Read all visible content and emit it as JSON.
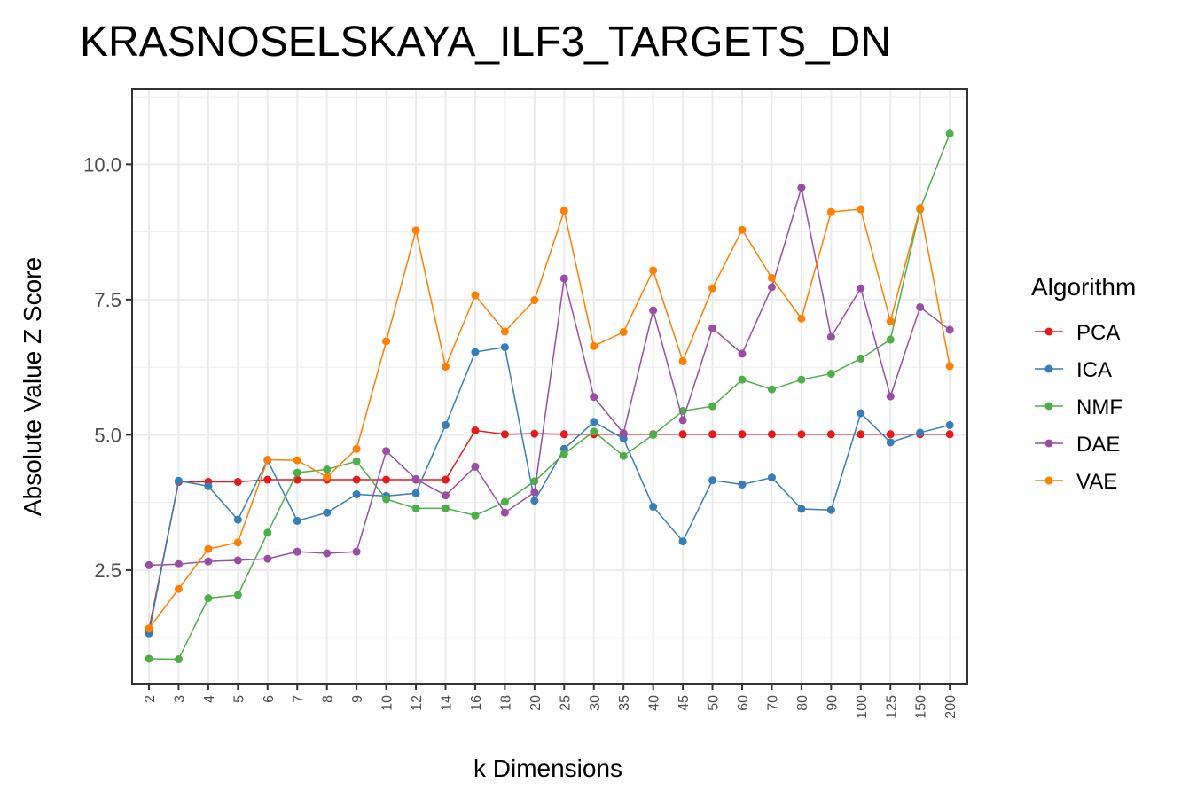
{
  "chart_data": {
    "type": "line",
    "title": "KRASNOSELSKAYA_ILF3_TARGETS_DN",
    "xlabel": "k Dimensions",
    "ylabel": "Absolute Value Z Score",
    "categories": [
      "2",
      "3",
      "4",
      "5",
      "6",
      "7",
      "8",
      "9",
      "10",
      "12",
      "14",
      "16",
      "18",
      "20",
      "25",
      "30",
      "35",
      "40",
      "45",
      "50",
      "60",
      "70",
      "80",
      "90",
      "100",
      "125",
      "150",
      "200"
    ],
    "yticks": [
      "2.5",
      "5.0",
      "7.5",
      "10.0"
    ],
    "ylim": [
      0.4,
      11.4
    ],
    "grid": true,
    "legend": {
      "title": "Algorithm",
      "position": "right"
    },
    "series": [
      {
        "name": "PCA",
        "color": "#e41a1c",
        "values": [
          1.4,
          4.13,
          4.13,
          4.13,
          4.17,
          4.17,
          4.17,
          4.17,
          4.17,
          4.17,
          4.17,
          5.08,
          5.01,
          5.02,
          5.01,
          5.01,
          5.01,
          5.01,
          5.01,
          5.01,
          5.01,
          5.01,
          5.01,
          5.01,
          5.01,
          5.01,
          5.01,
          5.01
        ]
      },
      {
        "name": "ICA",
        "color": "#377eb8",
        "values": [
          1.33,
          4.15,
          4.05,
          3.43,
          4.53,
          3.41,
          3.56,
          3.9,
          3.87,
          3.92,
          5.18,
          6.53,
          6.62,
          3.78,
          4.74,
          5.24,
          4.93,
          3.67,
          3.03,
          4.16,
          4.08,
          4.21,
          3.63,
          3.61,
          5.4,
          4.86,
          5.04,
          5.18
        ]
      },
      {
        "name": "NMF",
        "color": "#4daf4a",
        "values": [
          0.86,
          0.85,
          1.98,
          2.04,
          3.19,
          4.3,
          4.36,
          4.51,
          3.81,
          3.64,
          3.64,
          3.51,
          3.76,
          4.14,
          4.65,
          5.06,
          4.61,
          5.0,
          5.44,
          5.53,
          6.02,
          5.84,
          6.02,
          6.13,
          6.41,
          6.76,
          9.17,
          10.57
        ]
      },
      {
        "name": "DAE",
        "color": "#984ea3",
        "values": [
          2.59,
          2.61,
          2.66,
          2.68,
          2.71,
          2.84,
          2.81,
          2.84,
          4.7,
          4.18,
          3.88,
          4.41,
          3.56,
          3.94,
          7.89,
          5.7,
          5.03,
          7.3,
          5.27,
          6.97,
          6.5,
          7.73,
          9.57,
          6.81,
          7.71,
          5.71,
          7.36,
          6.94
        ]
      },
      {
        "name": "VAE",
        "color": "#ff7f00",
        "values": [
          1.42,
          2.15,
          2.89,
          3.01,
          4.54,
          4.53,
          4.22,
          4.74,
          6.73,
          8.78,
          6.26,
          7.58,
          6.91,
          7.49,
          9.14,
          6.64,
          6.9,
          8.04,
          6.36,
          7.71,
          8.79,
          7.9,
          7.15,
          9.12,
          9.17,
          7.1,
          9.19,
          6.27
        ]
      }
    ]
  }
}
